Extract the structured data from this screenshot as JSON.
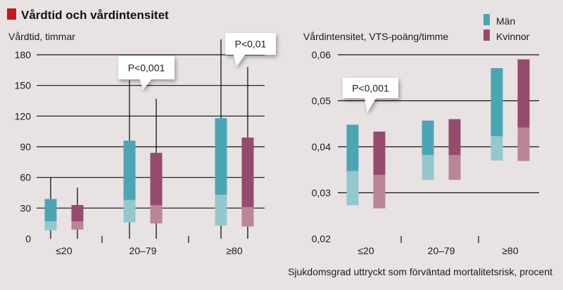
{
  "title": "Vårdtid och vårdintensitet",
  "colors": {
    "title_square": "#c8161d",
    "man_dark": "#4aa6b5",
    "man_light": "#93c8cf",
    "woman_dark": "#964a6e",
    "woman_light": "#b98599",
    "background": "#e8e3e2"
  },
  "legend": [
    {
      "name": "Män",
      "color": "#4aa6b5"
    },
    {
      "name": "Kvinnor",
      "color": "#964a6e"
    }
  ],
  "xlabel": "Sjukdomsgrad uttryckt som förväntad mortalitetsrisk, procent",
  "chart_data": [
    {
      "type": "box",
      "ylabel": "Vårdtid, timmar",
      "ylim": [
        0,
        180
      ],
      "yticks": [
        "0",
        "30",
        "60",
        "90",
        "120",
        "150",
        "180"
      ],
      "ytick_values": [
        0,
        30,
        60,
        90,
        120,
        150,
        180
      ],
      "categories": [
        "≤20",
        "20–79",
        "≥80"
      ],
      "series": [
        {
          "name": "Män",
          "low": [
            8,
            16,
            13
          ],
          "median": [
            17,
            38,
            43
          ],
          "high": [
            39,
            96,
            118
          ],
          "whisker_low": [
            0,
            0,
            0
          ],
          "whisker_high": [
            60,
            155,
            195
          ]
        },
        {
          "name": "Kvinnor",
          "low": [
            9,
            15,
            12
          ],
          "median": [
            17,
            33,
            31
          ],
          "high": [
            33,
            84,
            99
          ],
          "whisker_low": [
            0,
            0,
            0
          ],
          "whisker_high": [
            50,
            137,
            168
          ]
        }
      ],
      "annotations": [
        {
          "text": "P<0,001",
          "category": "20–79"
        },
        {
          "text": "P<0,01",
          "category": "≥80"
        }
      ]
    },
    {
      "type": "box",
      "ylabel": "Vårdintensitet, VTS-poäng/timme",
      "ylim": [
        0.02,
        0.06
      ],
      "yticks": [
        "0,02",
        "0,03",
        "0,04",
        "0,05",
        "0,06"
      ],
      "ytick_values": [
        0.02,
        0.03,
        0.04,
        0.05,
        0.06
      ],
      "categories": [
        "≤20",
        "20–79",
        "≥80"
      ],
      "series": [
        {
          "name": "Män",
          "low": [
            0.0273,
            0.0328,
            0.037
          ],
          "median": [
            0.0347,
            0.0382,
            0.0423
          ],
          "high": [
            0.0448,
            0.0457,
            0.0571
          ]
        },
        {
          "name": "Kvinnor",
          "low": [
            0.0266,
            0.0328,
            0.0369
          ],
          "median": [
            0.0339,
            0.0382,
            0.0442
          ],
          "high": [
            0.0433,
            0.046,
            0.059
          ]
        }
      ],
      "annotations": [
        {
          "text": "P<0,001",
          "category": "≤20"
        }
      ]
    }
  ]
}
